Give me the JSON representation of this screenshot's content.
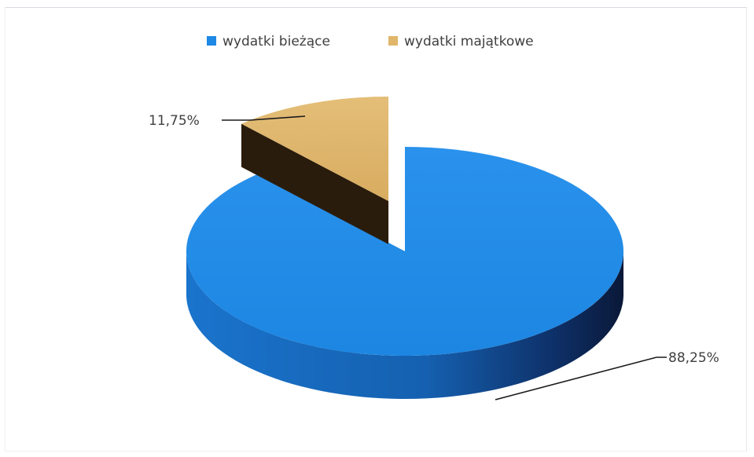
{
  "chart_data": {
    "type": "pie",
    "style": "3d-exploded",
    "legend_position": "top",
    "categories": [
      "wydatki bieżące",
      "wydatki majątkowe"
    ],
    "values": [
      88.25,
      11.75
    ],
    "data_labels": [
      "88,25%",
      "11,75%"
    ],
    "colors": {
      "wydatki bieżące": "#1e88e5",
      "wydatki majątkowe": "#e0b66a"
    }
  }
}
